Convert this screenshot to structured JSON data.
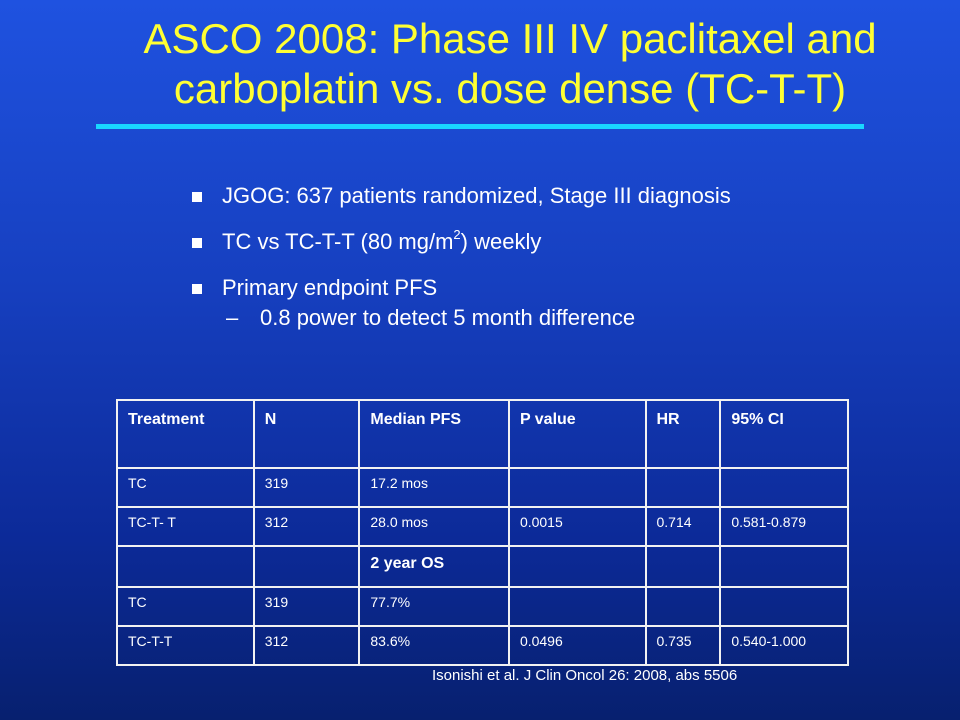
{
  "slide": {
    "title_line1": "ASCO 2008: Phase III IV paclitaxel and",
    "title_line2": "carboplatin vs. dose dense (TC-T-T)",
    "colors": {
      "title": "#ffff33",
      "underline": "#19d7ff",
      "background": "#163fbf"
    }
  },
  "bullets": {
    "b1": "JGOG: 637 patients randomized, Stage III diagnosis",
    "b2_before": "TC vs TC-T-T (80 mg/m",
    "b2_sup": "2",
    "b2_after": ") weekly",
    "b3": "Primary endpoint PFS",
    "b3_dash": "–",
    "b3_sub": "0.8 power to detect 5 month difference"
  },
  "table": {
    "headers": [
      "Treatment",
      "N",
      "Median PFS",
      "P value",
      "HR",
      "95% CI"
    ],
    "rows": [
      [
        "TC",
        "319",
        "17.2 mos",
        "",
        "",
        ""
      ],
      [
        "TC-T- T",
        "312",
        "28.0 mos",
        "0.0015",
        "0.714",
        "0.581-0.879"
      ]
    ],
    "section_title": "2 year OS",
    "rows2": [
      [
        "TC",
        "319",
        "77.7%",
        "",
        "",
        ""
      ],
      [
        "TC-T-T",
        "312",
        "83.6%",
        "0.0496",
        "0.735",
        "0.540-1.000"
      ]
    ]
  },
  "footnote": "Isonishi et al. J Clin Oncol 26: 2008, abs 5506"
}
